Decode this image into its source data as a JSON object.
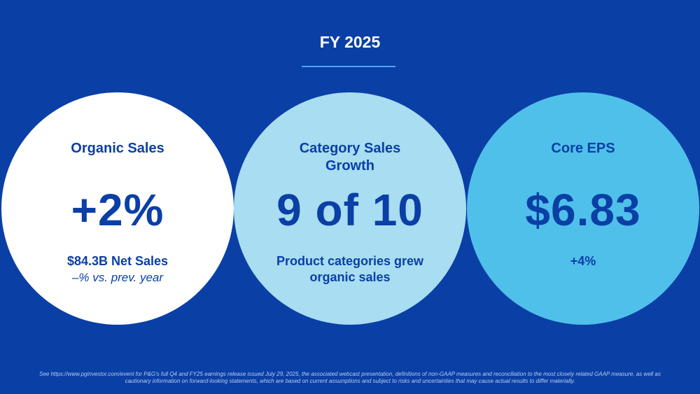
{
  "slide": {
    "title": "FY 2025"
  },
  "circles": [
    {
      "heading": "Organic Sales",
      "big_value": "+2%",
      "sub": "$84.3B Net Sales",
      "sub2": "–% vs. prev. year"
    },
    {
      "heading": "Category Sales Growth",
      "big_value": "9 of 10",
      "sub": "Product categories grew organic sales"
    },
    {
      "heading": "Core EPS",
      "big_value": "$6.83",
      "sub": "+4%"
    }
  ],
  "colors": {
    "background": "#0a3fa6",
    "circle_1": "#ffffff",
    "circle_2": "#a8ddf2",
    "circle_3": "#4fc0ea",
    "accent_rule": "#4aa8f0"
  },
  "footnote": "See https://www.pginvestor.com/event for P&G's full Q4 and FY25 earnings release issued July 29, 2025, the associated webcast presentation, definitions of non-GAAP measures and reconciliation to the most closely related GAAP measure, as well as cautionary information on forward-looking statements, which are based on current assumptions and subject to risks and uncertainties that may cause actual results to differ materially."
}
